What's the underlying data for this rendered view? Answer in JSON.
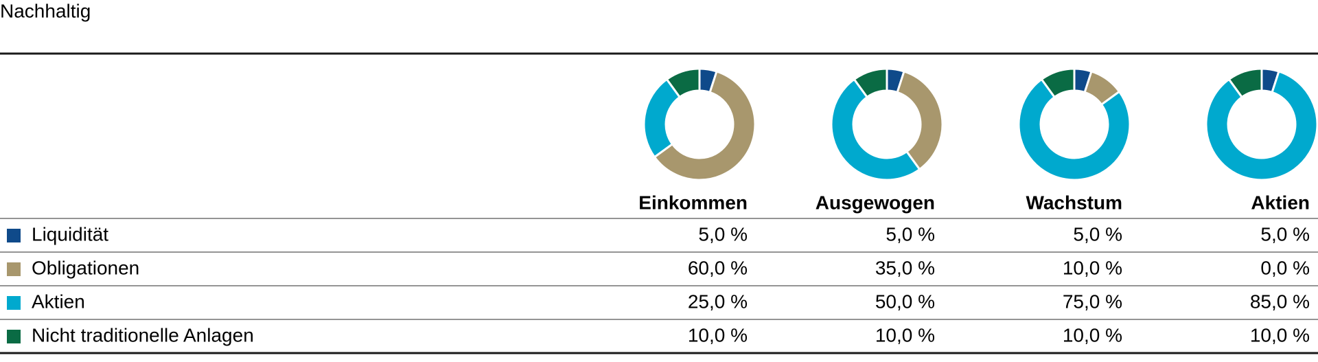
{
  "title": "Nachhaltig",
  "categories": [
    "Liquidität",
    "Obligationen",
    "Aktien",
    "Nicht traditionelle Anlagen"
  ],
  "colors": [
    "#0f4a8a",
    "#a8976d",
    "#00a9ce",
    "#0a6b44"
  ],
  "chart_data": [
    {
      "type": "pie",
      "title": "Einkommen",
      "values": [
        5,
        60,
        25,
        10
      ],
      "value_labels": [
        "5,0 %",
        "60,0 %",
        "25,0 %",
        "10,0 %"
      ]
    },
    {
      "type": "pie",
      "title": "Ausgewogen",
      "values": [
        5,
        35,
        50,
        10
      ],
      "value_labels": [
        "5,0 %",
        "35,0 %",
        "50,0 %",
        "10,0 %"
      ]
    },
    {
      "type": "pie",
      "title": "Wachstum",
      "values": [
        5,
        10,
        75,
        10
      ],
      "value_labels": [
        "5,0 %",
        "10,0 %",
        "75,0 %",
        "10,0 %"
      ]
    },
    {
      "type": "pie",
      "title": "Aktien",
      "values": [
        5,
        0,
        85,
        10
      ],
      "value_labels": [
        "5,0 %",
        "0,0 %",
        "85,0 %",
        "10,0 %"
      ]
    }
  ]
}
